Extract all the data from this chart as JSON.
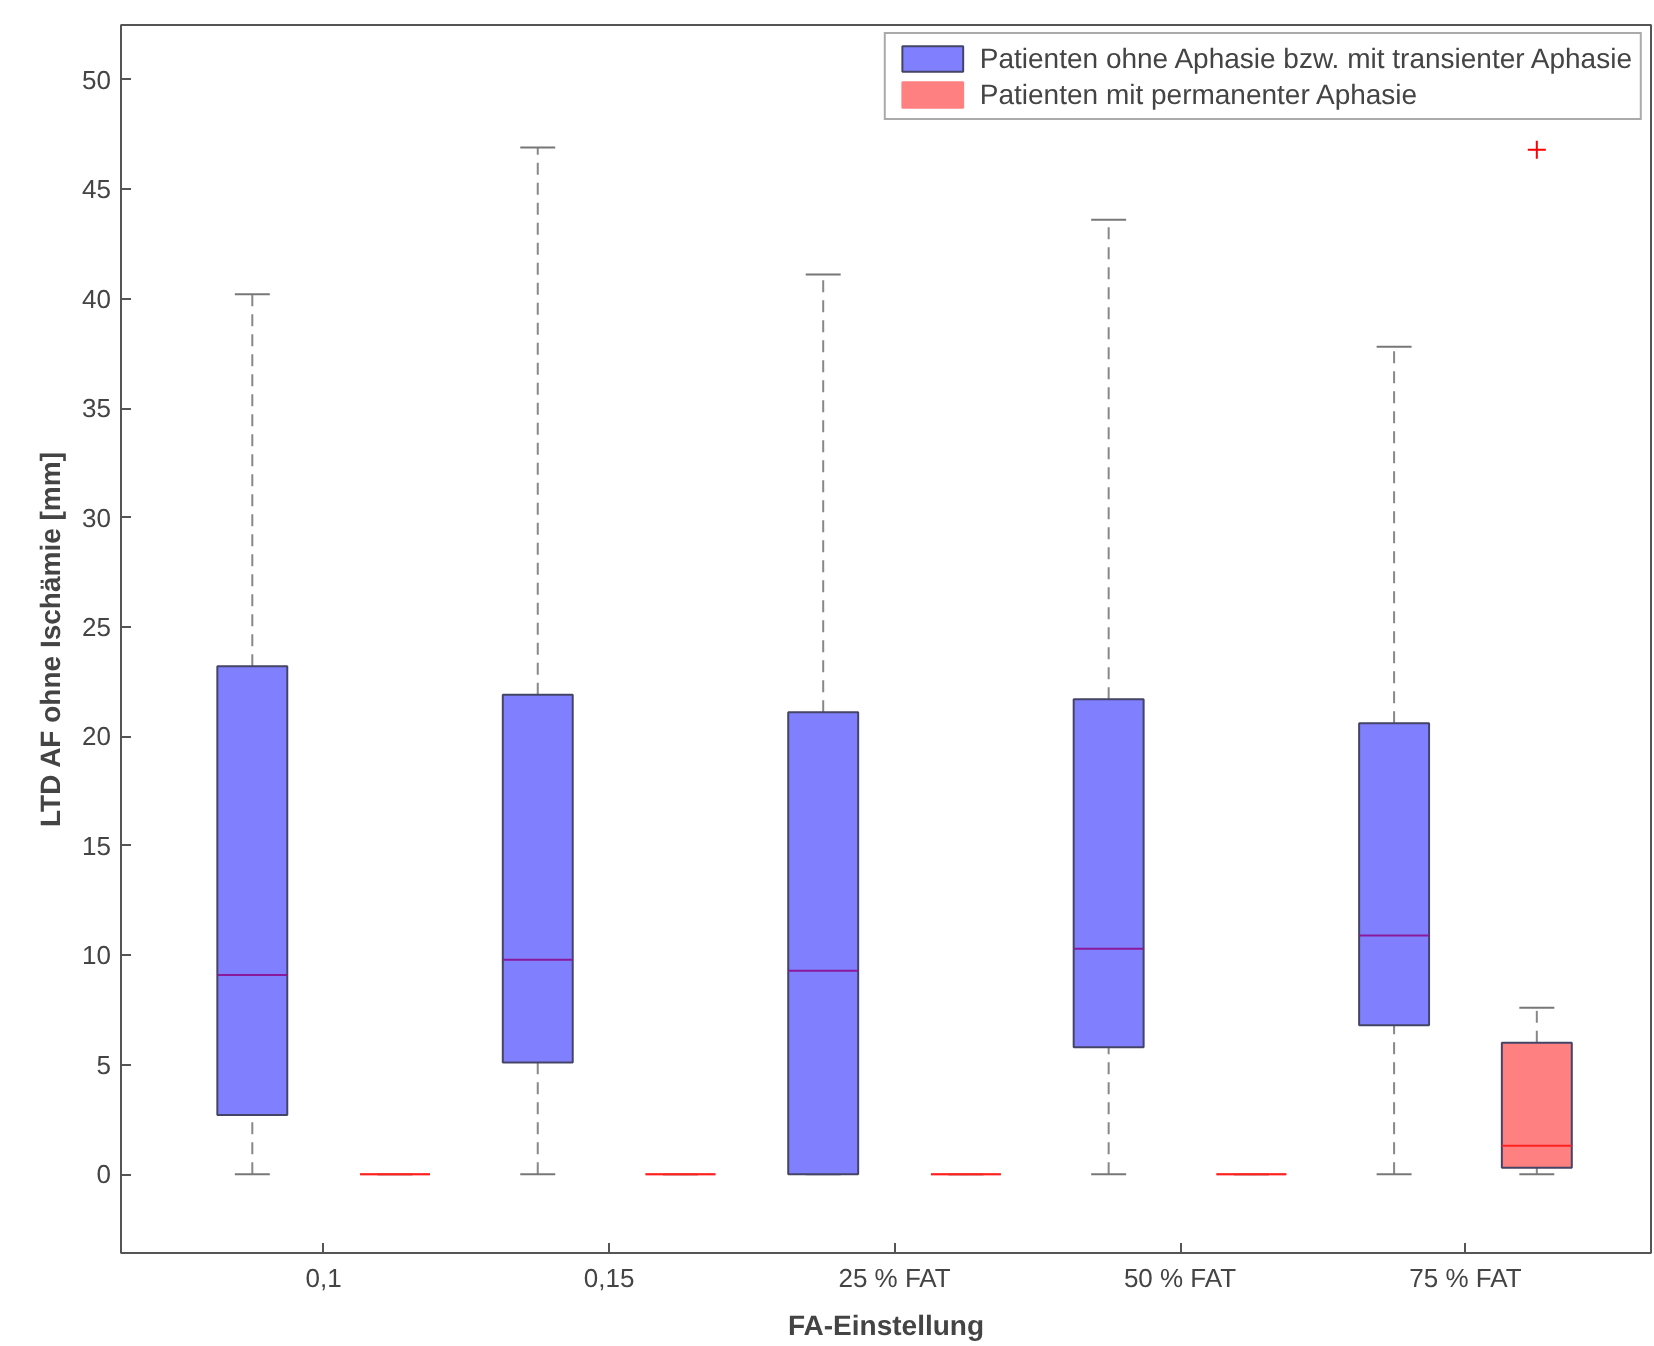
{
  "chart_data": {
    "type": "box",
    "xlabel": "FA-Einstellung",
    "ylabel": "LTD AF ohne Ischämie [mm]",
    "categories": [
      "0,1",
      "0,15",
      "25 % FAT",
      "50 % FAT",
      "75 % FAT"
    ],
    "ylim": [
      -3.6,
      52.5
    ],
    "yticks": [
      0,
      5,
      10,
      15,
      20,
      25,
      30,
      35,
      40,
      45,
      50
    ],
    "grid": false,
    "legend": "top right",
    "marker": "cross",
    "series": [
      {
        "name": "Patienten ohne Aphasie bzw. mit transienter Aphasie",
        "color": "#8080ff",
        "boxes": [
          {
            "low": 0,
            "q1": 2.7,
            "median": 9.1,
            "q3": 23.2,
            "high": 40.2
          },
          {
            "low": 0,
            "q1": 5.1,
            "median": 9.8,
            "q3": 21.9,
            "high": 46.9
          },
          {
            "low": 0,
            "q1": 0,
            "median": 9.3,
            "q3": 21.1,
            "high": 41.1
          },
          {
            "low": 0,
            "q1": 5.8,
            "median": 10.3,
            "q3": 21.7,
            "high": 43.6
          },
          {
            "low": 0,
            "q1": 6.8,
            "median": 10.9,
            "q3": 20.6,
            "high": 37.8
          }
        ]
      },
      {
        "name": "Patienten mit permanenter Aphasie",
        "color": "#ff8080",
        "boxes": [
          {
            "low": 0,
            "q1": 0,
            "median": 0,
            "q3": 0,
            "high": 0
          },
          {
            "low": 0,
            "q1": 0,
            "median": 0,
            "q3": 0,
            "high": 0
          },
          {
            "low": 0,
            "q1": 0,
            "median": 0,
            "q3": 0,
            "high": 0
          },
          {
            "low": 0,
            "q1": 0,
            "median": 0,
            "q3": 0,
            "high": 0
          },
          {
            "low": 0,
            "q1": 0.3,
            "median": 1.3,
            "q3": 6.0,
            "high": 7.6,
            "outliers": [
              46.8
            ]
          }
        ]
      }
    ]
  }
}
